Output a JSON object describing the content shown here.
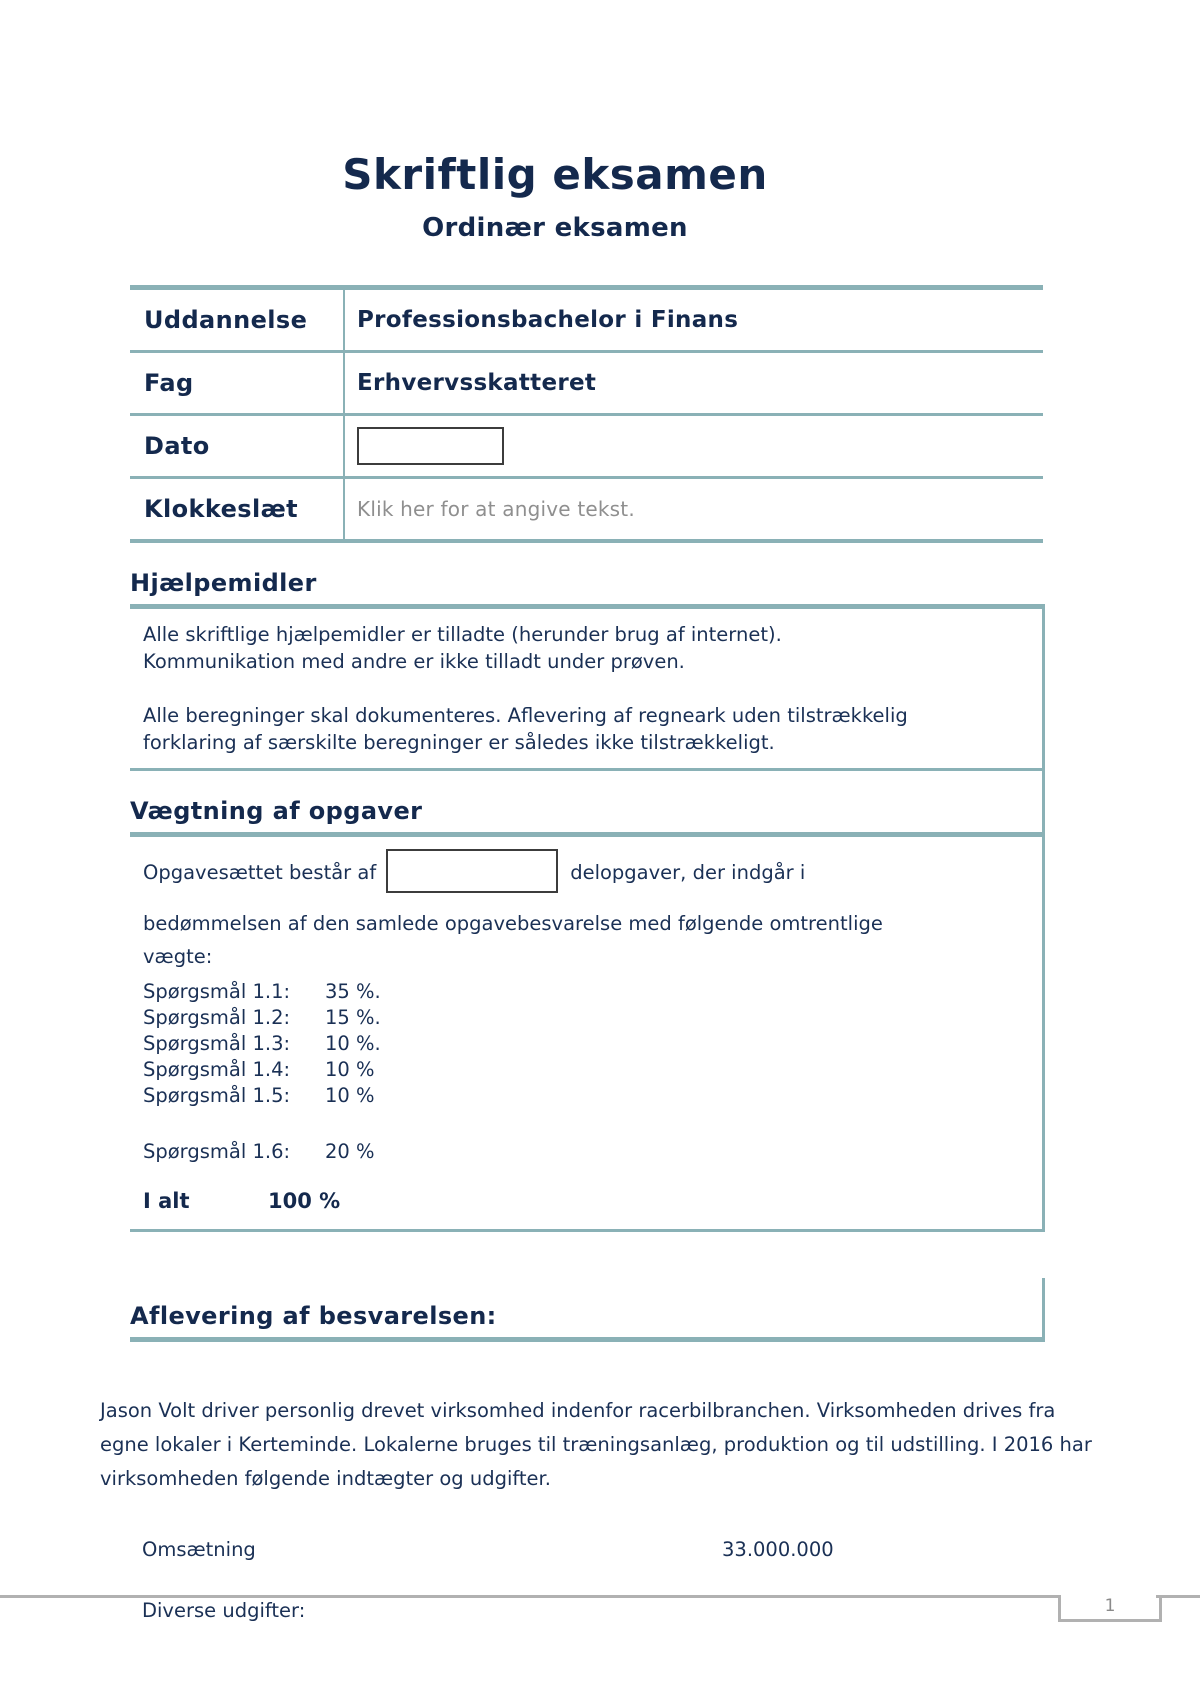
{
  "doc": {
    "title": "Skriftlig eksamen",
    "subtitle": "Ordinær eksamen"
  },
  "info_table": {
    "rows": [
      {
        "label": "Uddannelse",
        "value": "Professionsbachelor i Finans"
      },
      {
        "label": "Fag",
        "value": "Erhvervsskatteret"
      },
      {
        "label": "Dato",
        "value": ""
      },
      {
        "label": "Klokkeslæt",
        "value": "Klik her for at angive tekst."
      }
    ]
  },
  "hjaelpemidler": {
    "heading": "Hjælpemidler",
    "para1_line1": "Alle skriftlige hjælpemidler er tilladte (herunder brug af internet).",
    "para1_line2": "Kommunikation med andre er ikke tilladt under prøven.",
    "para2_line1": "Alle beregninger skal dokumenteres. Aflevering af regneark uden tilstrækkelig",
    "para2_line2": "forklaring af særskilte beregninger er således ikke tilstrækkeligt."
  },
  "vaegtning": {
    "heading": "Vægtning af opgaver",
    "intro_before_box": "Opgavesættet består af",
    "intro_after_box": "delopgaver, der indgår i",
    "intro_line2": "bedømmelsen af den samlede opgavebesvarelse med følgende omtrentlige",
    "intro_line3": "vægte:",
    "weights": [
      {
        "label": "Spørgsmål 1.1:",
        "value": "35 %."
      },
      {
        "label": "Spørgsmål 1.2:",
        "value": "15 %."
      },
      {
        "label": "Spørgsmål 1.3:",
        "value": "10 %."
      },
      {
        "label": "Spørgsmål 1.4:",
        "value": "10 %"
      },
      {
        "label": "Spørgsmål 1.5:",
        "value": "10 %"
      },
      {
        "label": "Spørgsmål 1.6:",
        "value": "20 %"
      }
    ],
    "total_label": "I alt",
    "total_value": "100 %"
  },
  "aflevering": {
    "heading": "Aflevering af besvarelsen:"
  },
  "case": {
    "paragraph": "Jason Volt driver personlig drevet virksomhed indenfor racerbilbranchen. Virksomheden drives fra egne lokaler i Kerteminde. Lokalerne bruges til træningsanlæg, produktion og til udstilling. I 2016 har virksomheden følgende indtægter og udgifter.",
    "revenue_label": "Omsætning",
    "revenue_value": "33.000.000",
    "expenses_heading": "Diverse udgifter:"
  },
  "footer": {
    "page_number": "1"
  },
  "colors": {
    "accent_teal": "#8ab1b6",
    "text_navy": "#17325a",
    "heading_navy": "#14294d",
    "placeholder_gray": "#8f8f8f",
    "footer_gray": "#b1b1b1",
    "input_border": "#3c3c3c"
  }
}
